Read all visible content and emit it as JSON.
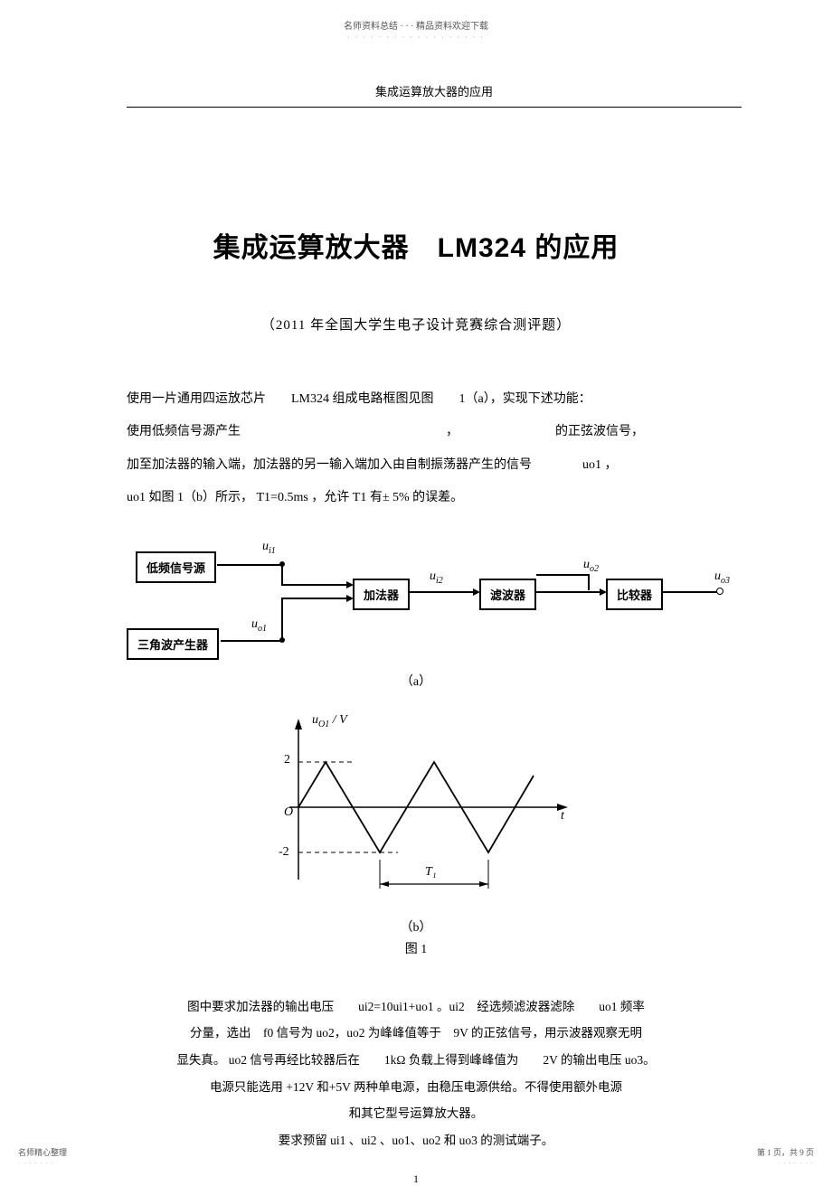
{
  "header": {
    "top_note": "名师资料总结 ·  ·  · 精品资料欢迎下载",
    "dots": "·  ·  ·  ·  ·  ·  ·  ·  ·  ·  ·  ·  ·  ·  ·  ·  ·  ·",
    "running_title": "集成运算放大器的应用"
  },
  "title": {
    "main": "集成运算放大器　LM324  的应用",
    "sub": "（2011 年全国大学生电子设计竞赛综合测评题）"
  },
  "body": {
    "l1": "使用一片通用四运放芯片　　LM324  组成电路框图见图　　1（a），实现下述功能：",
    "l2_a": "使用低频信号源产生",
    "l2_b": "，",
    "l2_c": "的正弦波信号，",
    "l3": "加至加法器的输入端，加法器的另一输入端加入由自制振荡器产生的信号　　　　uo1 ，",
    "l4": "uo1  如图  1（b）所示， T1=0.5ms  ，允许  T1  有±  5% 的误差。"
  },
  "diagram_a": {
    "blocks": {
      "source": "低频信号源",
      "triangle": "三角波产生器",
      "adder": "加法器",
      "filter": "滤波器",
      "comparator": "比较器"
    },
    "signals": {
      "ui1": "u<sub>i1</sub>",
      "uo1": "u<sub>o1</sub>",
      "ui2": "u<sub>i2</sub>",
      "uo2": "u<sub>o2</sub>",
      "uo3": "u<sub>o3</sub>"
    },
    "caption": "（a）"
  },
  "diagram_b": {
    "ylabel": "u<sub>O1</sub> / V",
    "y_max": 2,
    "y_min": -2,
    "y_ticks": [
      "2",
      "-2"
    ],
    "origin": "O",
    "xlabel": "t",
    "period_label": "T₁",
    "caption": "（b）",
    "fig_label": "图 1",
    "line_color": "#000000",
    "background": "#ffffff",
    "amplitude": 2,
    "periods_shown": 2.5
  },
  "footer_para": {
    "l1": "图中要求加法器的输出电压　　ui2=10ui1+uo1 。ui2　经选频滤波器滤除　　uo1 频率",
    "l2": "分量，选出　f0  信号为 uo2，uo2 为峰峰值等于　9V  的正弦信号，用示波器观察无明",
    "l3": "显失真。 uo2  信号再经比较器后在　　1kΩ 负载上得到峰峰值为　　2V  的输出电压  uo3。",
    "l4": "电源只能选用  +12V  和+5V 两种单电源，由稳压电源供给。不得使用额外电源",
    "l5": "和其它型号运算放大器。",
    "l6": "要求预留   ui1 、ui2 、uo1、uo2  和 uo3 的测试端子。"
  },
  "page_num": "1",
  "footer": {
    "left": "名师精心整理",
    "right": "第 1 页，共 9 页",
    "dots": "· · · · · · ·"
  }
}
